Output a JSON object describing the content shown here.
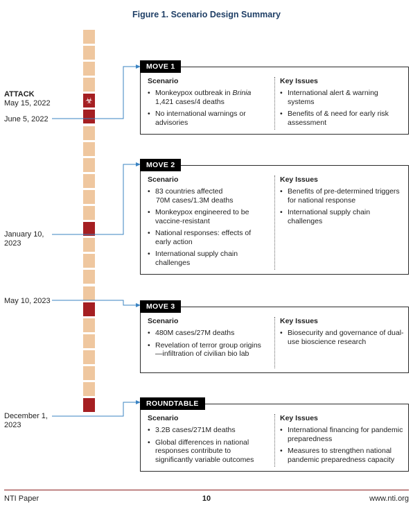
{
  "title": "Figure 1. Scenario Design Summary",
  "timeline": {
    "segment_count": 24,
    "marked_segments": [
      4,
      5,
      12,
      17,
      23
    ],
    "biohazard_segment": 4,
    "biohazard_icon": "biohazard-icon",
    "colors": {
      "segment": "#efc79f",
      "marked": "#a51f22",
      "connector": "#3a83c2"
    }
  },
  "dates": {
    "attack_label": "ATTACK",
    "attack_date": "May 15, 2022",
    "move1_date": "June 5, 2022",
    "move2_date_line1": "January 10,",
    "move2_date_line2": "2023",
    "move3_date": "May 10, 2023",
    "roundtable_date_line1": "December 1,",
    "roundtable_date_line2": "2023"
  },
  "moves": [
    {
      "tag": "MOVE 1",
      "scenario_heading": "Scenario",
      "issues_heading": "Key Issues",
      "scenario": [
        "Monkeypox outbreak in Brinia 1,421 cases/4 deaths",
        "No international warnings or advisories"
      ],
      "issues": [
        "International alert & warning systems",
        "Benefits of & need for early risk assessment"
      ]
    },
    {
      "tag": "MOVE 2",
      "scenario_heading": "Scenario",
      "issues_heading": "Key Issues",
      "scenario": [
        "83 countries affected 70M cases/1.3M deaths",
        "Monkeypox engineered to be vaccine-resistant",
        "National responses: effects of early action",
        "International supply chain challenges"
      ],
      "issues": [
        "Benefits of pre-determined triggers for national response",
        "International supply chain challenges"
      ]
    },
    {
      "tag": "MOVE 3",
      "scenario_heading": "Scenario",
      "issues_heading": "Key Issues",
      "scenario": [
        "480M cases/27M deaths",
        "Revelation of terror group origins—infiltration of civilian bio lab"
      ],
      "issues": [
        "Biosecurity and governance of dual-use bioscience research"
      ]
    },
    {
      "tag": "ROUNDTABLE",
      "scenario_heading": "Scenario",
      "issues_heading": "Key Issues",
      "scenario": [
        "3.2B cases/271M deaths",
        "Global differences in national responses contribute to significantly variable outcomes"
      ],
      "issues": [
        "International financing for pandemic preparedness",
        "Measures to strengthen national pandemic preparedness capacity"
      ]
    }
  ],
  "footer": {
    "left": "NTI Paper",
    "center": "10",
    "right": "www.nti.org"
  }
}
